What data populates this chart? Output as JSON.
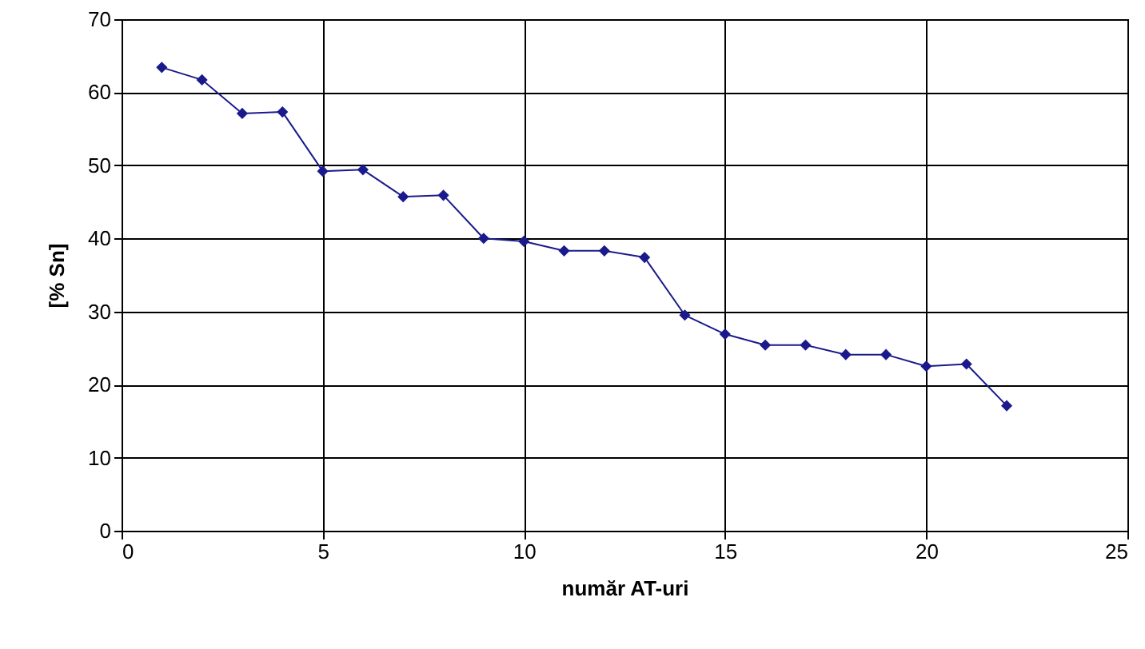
{
  "chart_data": {
    "type": "line",
    "xlabel": "număr AT-uri",
    "ylabel": "[% Sn]",
    "x": [
      1,
      2,
      3,
      4,
      5,
      6,
      7,
      8,
      9,
      10,
      11,
      12,
      13,
      14,
      15,
      16,
      17,
      18,
      19,
      20,
      21,
      22
    ],
    "series": [
      {
        "color": "#1a1a8c",
        "values": [
          63.4,
          61.7,
          57.1,
          57.3,
          49.2,
          49.4,
          45.7,
          45.9,
          40.0,
          39.6,
          38.3,
          38.3,
          37.4,
          29.5,
          26.9,
          25.4,
          25.4,
          24.1,
          24.1,
          22.5,
          22.8,
          17.1
        ]
      }
    ],
    "xlim": [
      0,
      25
    ],
    "xticks": [
      0,
      5,
      10,
      15,
      20,
      25
    ],
    "ylim": [
      0,
      70
    ],
    "yticks": [
      0,
      10,
      20,
      30,
      40,
      50,
      60,
      70
    ],
    "grid": true,
    "marker": "diamond",
    "line_style": "solid"
  }
}
